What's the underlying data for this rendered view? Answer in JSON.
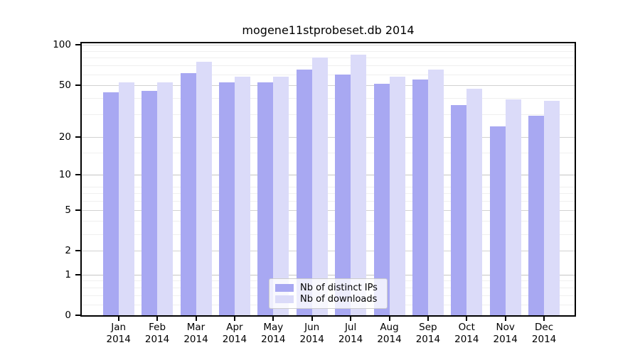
{
  "chart_data": {
    "type": "bar",
    "title": "mogene11stprobeset.db 2014",
    "categories": [
      "Jan 2014",
      "Feb 2014",
      "Mar 2014",
      "Apr 2014",
      "May 2014",
      "Jun 2014",
      "Jul 2014",
      "Aug 2014",
      "Sep 2014",
      "Oct 2014",
      "Nov 2014",
      "Dec 2014"
    ],
    "x_months": [
      "Jan",
      "Feb",
      "Mar",
      "Apr",
      "May",
      "Jun",
      "Jul",
      "Aug",
      "Sep",
      "Oct",
      "Nov",
      "Dec"
    ],
    "year": "2014",
    "series": [
      {
        "name": "Nb of distinct IPs",
        "color": "#a8a8f2",
        "values": [
          44,
          45,
          61,
          52,
          52,
          65,
          60,
          51,
          55,
          35,
          24,
          29
        ]
      },
      {
        "name": "Nb of downloads",
        "color": "#dbdbf9",
        "values": [
          52,
          52,
          75,
          58,
          58,
          80,
          84,
          58,
          65,
          47,
          39,
          38
        ]
      }
    ],
    "y_ticks": [
      0,
      1,
      2,
      5,
      10,
      20,
      50,
      100
    ],
    "y_minor_ticks": [
      0.2,
      0.4,
      0.6,
      0.8,
      3,
      4,
      6,
      7,
      8,
      15,
      30,
      40,
      60,
      70,
      80,
      90
    ],
    "y_scale": "log10(1+value)",
    "ylim": [
      0,
      100
    ],
    "xlabel": "",
    "ylabel": "",
    "grid": true,
    "legend": {
      "position": "bottom-center",
      "entries": [
        "Nb of distinct IPs",
        "Nb of downloads"
      ]
    }
  }
}
